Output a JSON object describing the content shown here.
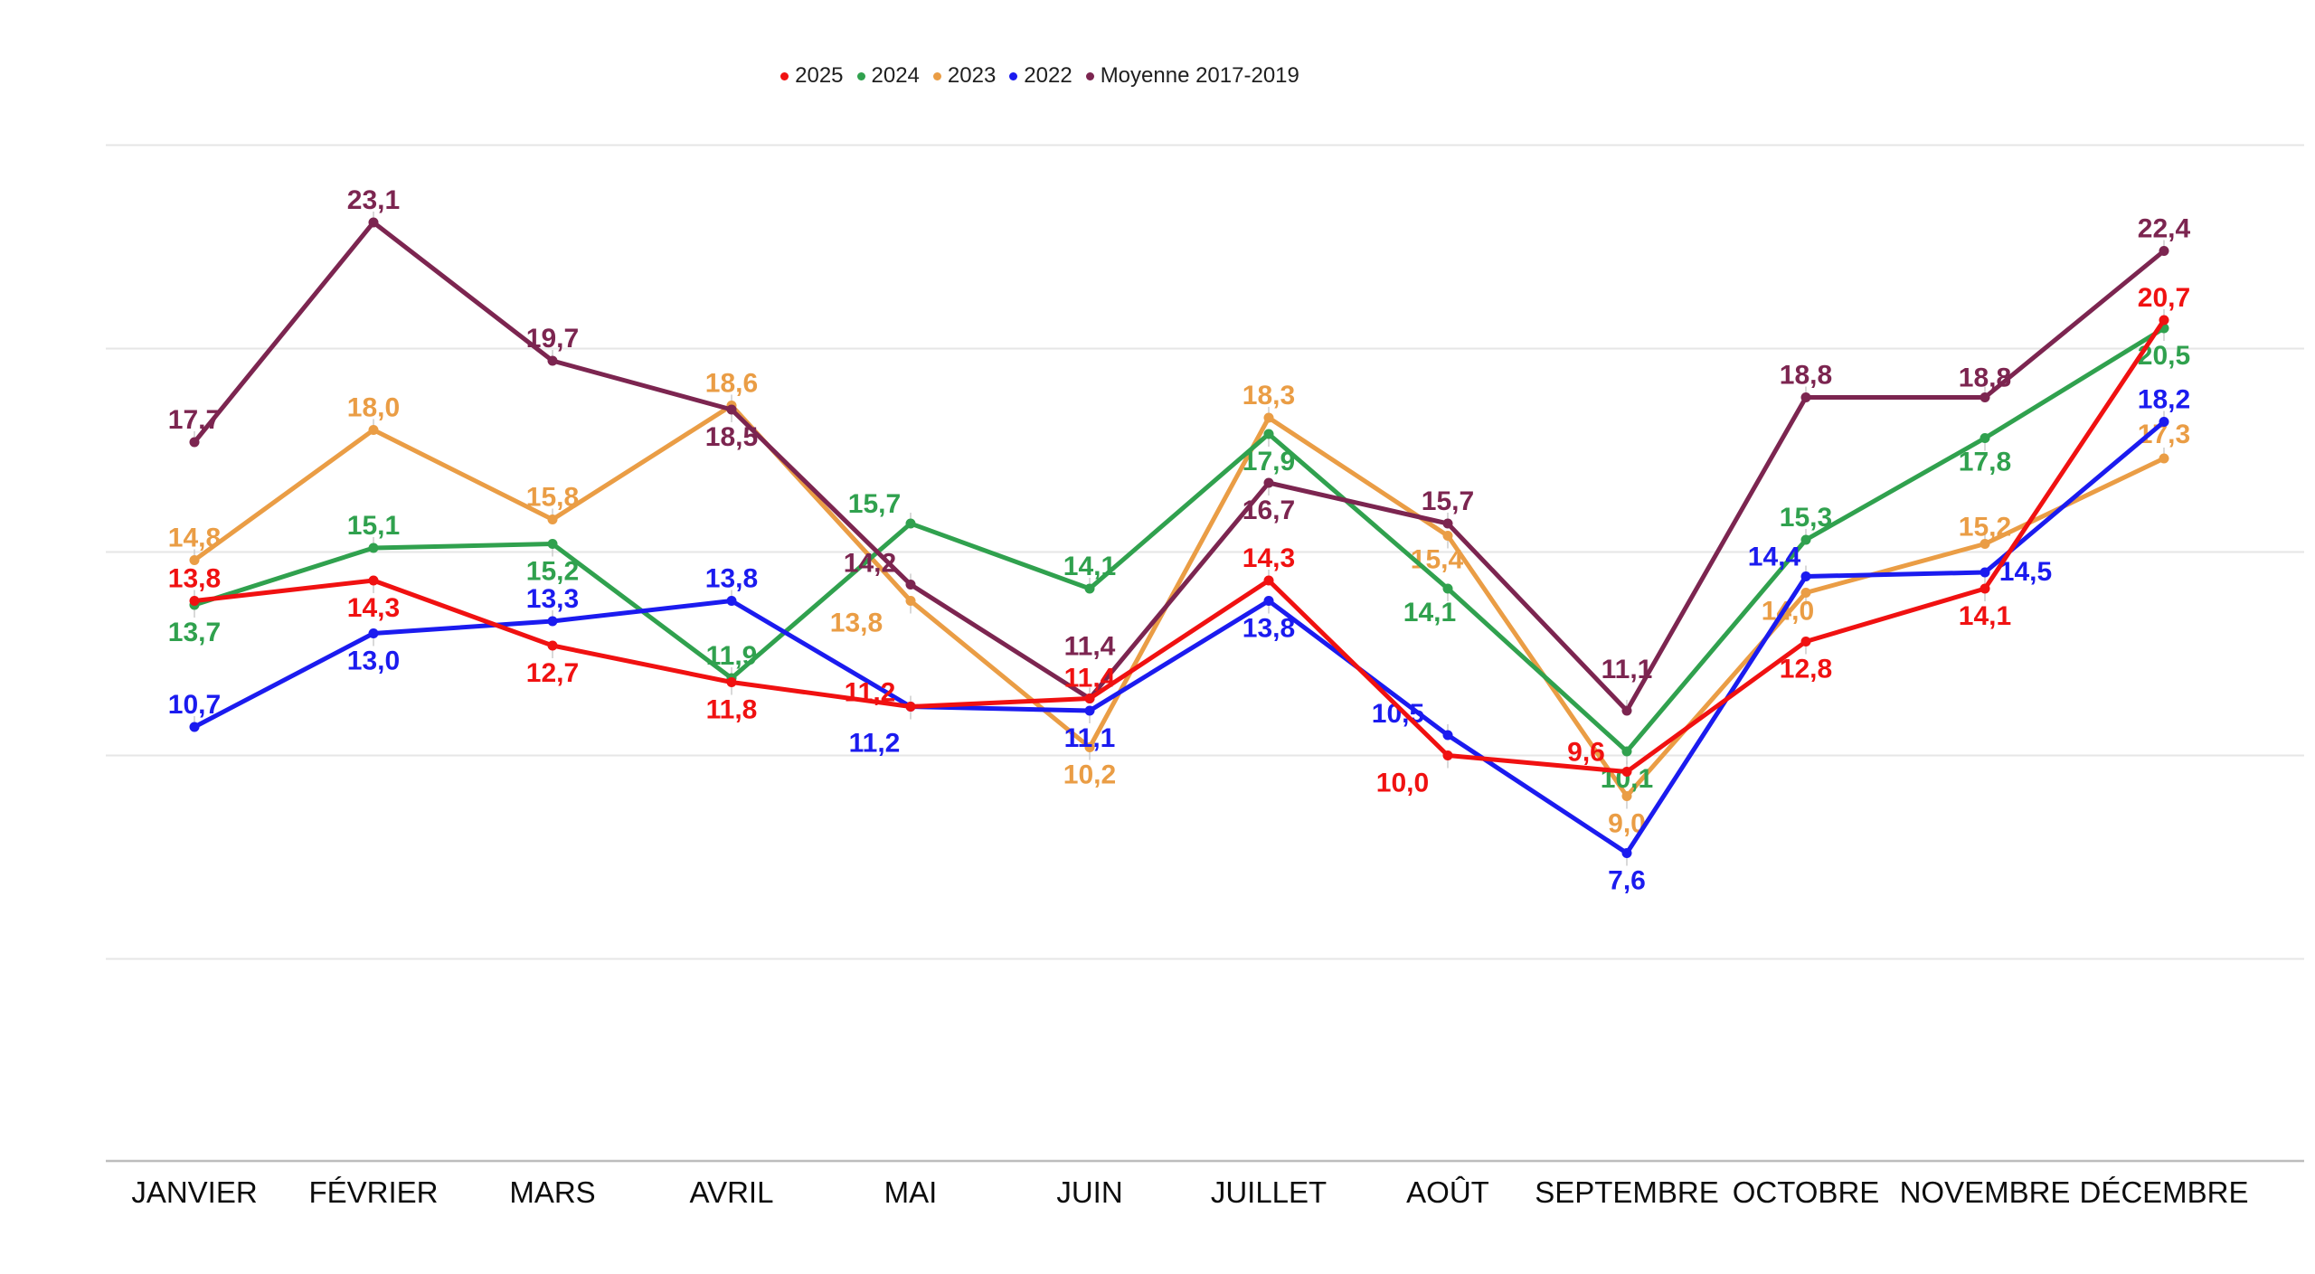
{
  "page": {
    "background": "#ffffff"
  },
  "chart_data": {
    "type": "line",
    "title": "",
    "xlabel": "",
    "ylabel": "",
    "categories": [
      "JANVIER",
      "FÉVRIER",
      "MARS",
      "AVRIL",
      "MAI",
      "JUIN",
      "JUILLET",
      "AOÛT",
      "SEPTEMBRE",
      "OCTOBRE",
      "NOVEMBRE",
      "DÉCEMBRE"
    ],
    "series": [
      {
        "name": "2025",
        "color": "#f01111",
        "values": [
          13.8,
          14.3,
          12.7,
          11.8,
          11.2,
          11.4,
          14.3,
          10.0,
          9.6,
          12.8,
          14.1,
          20.7
        ],
        "label_dx": [
          0,
          0,
          0,
          0,
          -45,
          0,
          0,
          -50,
          -45,
          0,
          0,
          0
        ],
        "label_dy": [
          -15,
          40,
          40,
          40,
          -6,
          -13,
          -15,
          40,
          -12,
          40,
          40,
          -15
        ]
      },
      {
        "name": "2024",
        "color": "#30a14e",
        "values": [
          13.7,
          15.1,
          15.2,
          11.9,
          15.7,
          14.1,
          17.9,
          14.1,
          10.1,
          15.3,
          17.8,
          20.5
        ],
        "label_dx": [
          0,
          0,
          0,
          0,
          -40,
          0,
          0,
          -20,
          0,
          0,
          0,
          0
        ],
        "label_dy": [
          40,
          -15,
          40,
          -15,
          -12,
          -15,
          40,
          36,
          40,
          -15,
          36,
          40
        ]
      },
      {
        "name": "2023",
        "color": "#ea9d45",
        "values": [
          14.8,
          18.0,
          15.8,
          18.6,
          13.8,
          10.2,
          18.3,
          15.4,
          9.0,
          14.0,
          15.2,
          17.3
        ],
        "label_dx": [
          0,
          0,
          0,
          0,
          -60,
          0,
          0,
          -12,
          0,
          -20,
          0,
          0
        ],
        "label_dy": [
          -15,
          -15,
          -15,
          -15,
          34,
          40,
          -15,
          36,
          40,
          30,
          -9,
          -17
        ]
      },
      {
        "name": "2022",
        "color": "#1b1bef",
        "values": [
          10.7,
          13.0,
          13.3,
          13.8,
          11.2,
          11.1,
          13.8,
          10.5,
          7.6,
          14.4,
          14.5,
          18.2
        ],
        "label_dx": [
          0,
          0,
          0,
          0,
          -40,
          0,
          0,
          -55,
          0,
          -35,
          45,
          0
        ],
        "label_dy": [
          -15,
          40,
          -15,
          -15,
          50,
          40,
          40,
          -14,
          40,
          -12,
          9,
          -15
        ]
      },
      {
        "name": "Moyenne 2017-2019",
        "color": "#7c2550",
        "values": [
          17.7,
          23.1,
          19.7,
          18.5,
          14.2,
          11.4,
          16.7,
          15.7,
          11.1,
          18.8,
          18.8,
          22.4
        ],
        "label_dx": [
          0,
          0,
          0,
          0,
          -45,
          0,
          0,
          0,
          0,
          0,
          0,
          0
        ],
        "label_dy": [
          -15,
          -15,
          -15,
          40,
          -14,
          -48,
          40,
          -15,
          -36,
          -15,
          -12,
          -15
        ]
      }
    ],
    "draw_order": [
      "2023",
      "2024",
      "2022",
      "Moyenne 2017-2019",
      "2025"
    ],
    "ylim": [
      0,
      26.5
    ],
    "y_gridlines": [
      5,
      10,
      15,
      20,
      25
    ],
    "grid": true,
    "legend_position": "top-center",
    "decimal_separator": ",",
    "colors": {
      "gridline": "#e6e6e6",
      "axis_line": "#bdbdbd",
      "leader_line": "#cccccc",
      "month_label": "#0d0d0d",
      "legend_text": "#1f1f1f"
    }
  }
}
